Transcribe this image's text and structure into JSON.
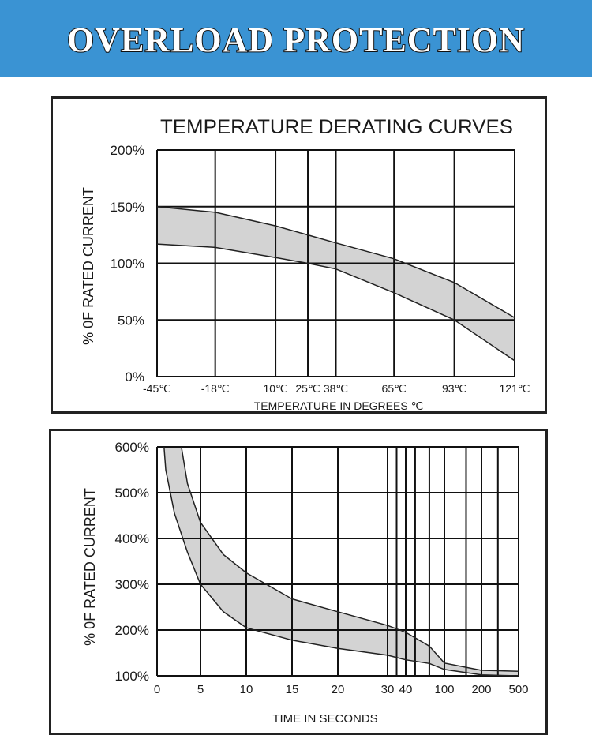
{
  "header": {
    "title": "OVERLOAD PROTECTION",
    "background": "#3a93d3"
  },
  "colors": {
    "band_fill": "#d3d3d3",
    "grid": "#111111",
    "curve": "#222222"
  },
  "chart_data": [
    {
      "type": "area",
      "title": "TEMPERATURE DERATING CURVES",
      "xlabel": "TEMPERATURE IN DEGREES ℃",
      "ylabel": "% 0F RATED CURRENT",
      "x_ticks": [
        "-45℃",
        "-18℃",
        "10℃",
        "25℃",
        "38℃",
        "65℃",
        "93℃",
        "121℃"
      ],
      "y_ticks": [
        "0%",
        "50%",
        "100%",
        "150%",
        "200%"
      ],
      "ylim": [
        0,
        200
      ],
      "xlim": [
        -45,
        121
      ],
      "grid": true,
      "series": [
        {
          "x": [
            -45,
            -18,
            10,
            25,
            38,
            65,
            93,
            121
          ],
          "values": [
            150,
            145,
            133,
            125,
            118,
            104,
            83,
            52
          ]
        },
        {
          "x": [
            -45,
            -18,
            10,
            25,
            38,
            65,
            93,
            121
          ],
          "values": [
            117,
            114,
            105,
            100,
            95,
            74,
            50,
            14
          ]
        }
      ]
    },
    {
      "type": "area",
      "title": "",
      "xlabel": "TIME IN SECONDS",
      "ylabel": "% 0F RATED CURRENT",
      "x_ticks": [
        "0",
        "5",
        "10",
        "15",
        "20",
        "30",
        "40",
        "100",
        "200",
        "500"
      ],
      "y_ticks": [
        "100%",
        "200%",
        "300%",
        "400%",
        "500%",
        "600%"
      ],
      "ylim": [
        100,
        600
      ],
      "grid": true,
      "series": [
        {
          "x": [
            2.8,
            3.5,
            5,
            7.5,
            10,
            15,
            20,
            30,
            40,
            70,
            100,
            200,
            500
          ],
          "values": [
            600,
            520,
            435,
            365,
            325,
            268,
            240,
            210,
            195,
            165,
            128,
            112,
            110
          ]
        },
        {
          "x": [
            0.8,
            1,
            2,
            3.5,
            5,
            7.5,
            10,
            15,
            20,
            30,
            40,
            70,
            100,
            200,
            500
          ],
          "values": [
            600,
            550,
            455,
            370,
            300,
            240,
            205,
            178,
            160,
            145,
            135,
            127,
            114,
            102,
            100
          ]
        }
      ]
    }
  ]
}
